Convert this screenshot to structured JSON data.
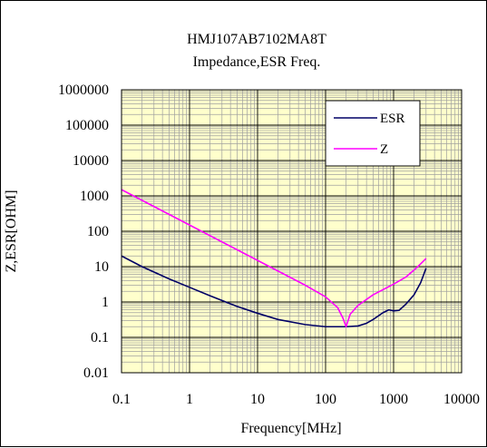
{
  "chart_data": {
    "type": "line",
    "title": "HMJ107AB7102MA8T",
    "subtitle": "Impedance,ESR Freq.",
    "xlabel": "Frequency[MHz]",
    "ylabel": "Z,ESR[OHM]",
    "xscale": "log",
    "yscale": "log",
    "xlim": [
      0.1,
      10000
    ],
    "ylim": [
      0.01,
      1000000
    ],
    "x_ticks": [
      "0.1",
      "1",
      "10",
      "100",
      "1000",
      "10000"
    ],
    "y_ticks": [
      "0.01",
      "0.1",
      "1",
      "10",
      "100",
      "1000",
      "10000",
      "100000",
      "1000000"
    ],
    "grid": true,
    "legend_position": "top-right",
    "plot_background": "#ffffcc",
    "series": [
      {
        "name": "ESR",
        "color": "#000066",
        "points": [
          [
            0.1,
            20
          ],
          [
            0.2,
            10
          ],
          [
            0.5,
            4.5
          ],
          [
            1,
            2.6
          ],
          [
            2,
            1.5
          ],
          [
            5,
            0.75
          ],
          [
            10,
            0.48
          ],
          [
            20,
            0.32
          ],
          [
            50,
            0.23
          ],
          [
            100,
            0.2
          ],
          [
            200,
            0.2
          ],
          [
            300,
            0.21
          ],
          [
            400,
            0.25
          ],
          [
            500,
            0.32
          ],
          [
            700,
            0.5
          ],
          [
            850,
            0.6
          ],
          [
            1000,
            0.56
          ],
          [
            1200,
            0.58
          ],
          [
            1500,
            0.85
          ],
          [
            2000,
            1.6
          ],
          [
            2500,
            3.5
          ],
          [
            3000,
            9
          ]
        ]
      },
      {
        "name": "Z",
        "color": "#ff00ff",
        "points": [
          [
            0.1,
            1500
          ],
          [
            0.2,
            750
          ],
          [
            0.5,
            300
          ],
          [
            1,
            150
          ],
          [
            2,
            75
          ],
          [
            5,
            30
          ],
          [
            10,
            15
          ],
          [
            20,
            7.5
          ],
          [
            50,
            3
          ],
          [
            100,
            1.4
          ],
          [
            150,
            0.7
          ],
          [
            180,
            0.35
          ],
          [
            200,
            0.2
          ],
          [
            230,
            0.45
          ],
          [
            300,
            0.8
          ],
          [
            500,
            1.6
          ],
          [
            1000,
            3.2
          ],
          [
            1500,
            5
          ],
          [
            2000,
            8
          ],
          [
            2500,
            12
          ],
          [
            3000,
            17
          ]
        ]
      }
    ]
  }
}
